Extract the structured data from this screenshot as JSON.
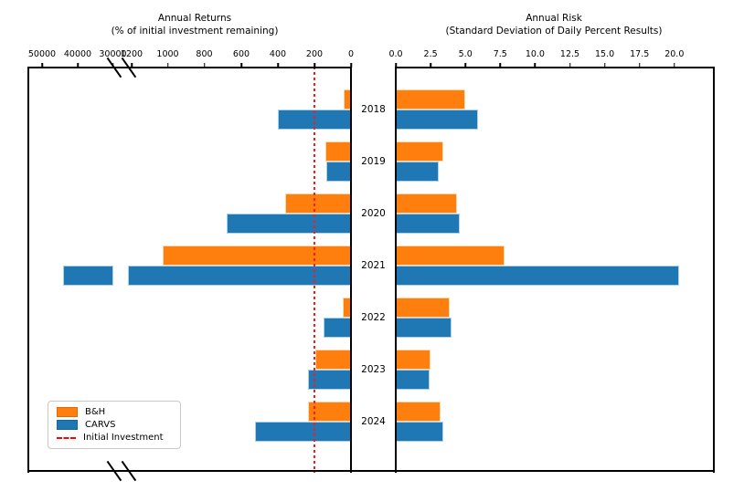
{
  "legend": {
    "items": [
      {
        "label": "B&H",
        "marker": "patch",
        "color": "#ff7f0e"
      },
      {
        "label": "CARVS",
        "marker": "patch",
        "color": "#1f77b4"
      },
      {
        "label": "Initial Investment",
        "marker": "dashed-line",
        "color": "#ff0000"
      }
    ]
  },
  "colors": {
    "bh": "#ff7f0e",
    "carvs": "#1f77b4",
    "initial_investment_line": "#ff0000",
    "axis": "#000000"
  },
  "chart_data": [
    {
      "type": "bar",
      "orientation": "horizontal",
      "side": "left",
      "title": "Annual Returns",
      "subtitle": "(% of initial investment remaining)",
      "categories": [
        "2018",
        "2019",
        "2020",
        "2021",
        "2022",
        "2023",
        "2024"
      ],
      "series": [
        {
          "name": "B&H",
          "color": "#ff7f0e",
          "values": [
            40,
            140,
            360,
            1030,
            45,
            195,
            235
          ]
        },
        {
          "name": "CARVS",
          "color": "#1f77b4",
          "values": [
            400,
            135,
            680,
            44000,
            150,
            235,
            525
          ]
        }
      ],
      "axis": {
        "inverted": true,
        "broken": true,
        "tick_labels": [
          "50000",
          "40000",
          "30000",
          "1200",
          "1000",
          "800",
          "600",
          "400",
          "200",
          "0"
        ],
        "linear_segment_range": [
          0,
          1200
        ],
        "compressed_segment_range": [
          30000,
          50000
        ]
      },
      "reference_line": {
        "label": "Initial Investment",
        "value": 100,
        "style": "dashed",
        "color": "#ff0000"
      },
      "grid": false
    },
    {
      "type": "bar",
      "orientation": "horizontal",
      "side": "right",
      "title": "Annual Risk",
      "subtitle": "(Standard Deviation of Daily Percent Results)",
      "categories": [
        "2018",
        "2019",
        "2020",
        "2021",
        "2022",
        "2023",
        "2024"
      ],
      "series": [
        {
          "name": "B&H",
          "color": "#ff7f0e",
          "values": [
            5.0,
            3.4,
            4.4,
            7.8,
            3.9,
            2.5,
            3.2
          ]
        },
        {
          "name": "CARVS",
          "color": "#1f77b4",
          "values": [
            5.9,
            3.1,
            4.6,
            20.3,
            4.0,
            2.4,
            3.4
          ]
        }
      ],
      "axis": {
        "tick_labels": [
          "0.0",
          "2.5",
          "5.0",
          "7.5",
          "10.0",
          "12.5",
          "15.0",
          "17.5",
          "20.0"
        ],
        "range": [
          0,
          22.8
        ]
      },
      "grid": false
    }
  ]
}
